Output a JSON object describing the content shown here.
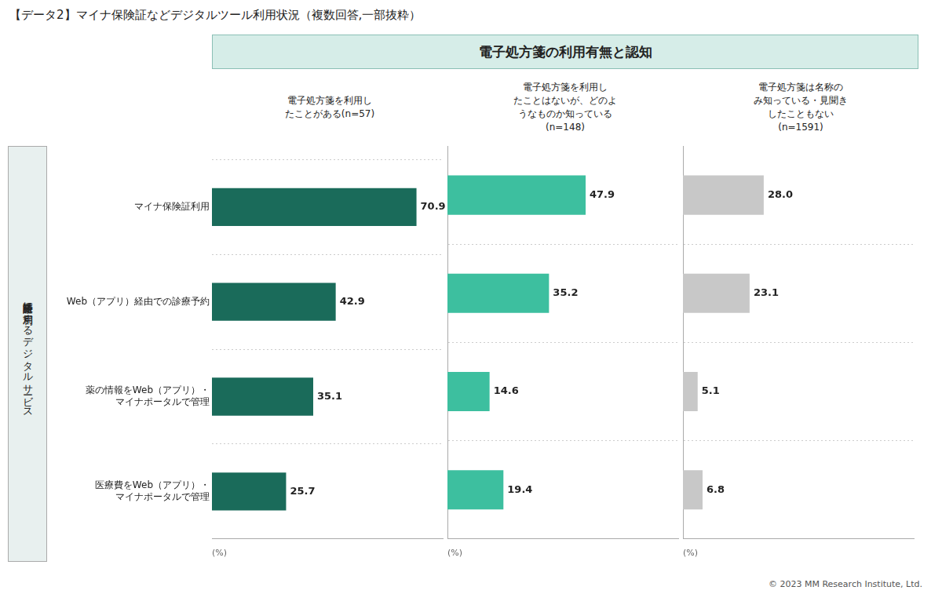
{
  "chart_data": {
    "type": "bar",
    "orientation": "horizontal",
    "title": "【データ2】マイナ保険証などデジタルツール利用状況（複数回答,一部抜粋）",
    "subtitle": "電子処方箋の利用有無と認知",
    "ylabel": "医療受診時に利用するデジタルサービス",
    "xlabel": "(%)",
    "annotations": [
      "© 2023 MM Research Institute, Ltd."
    ],
    "categories": [
      "マイナ保険証利用",
      "Web（アプリ）経由での診療予約",
      "薬の情報をWeb（アプリ）・\nマイナポータルで管理",
      "医療費をWeb（アプリ）・\nマイナポータルで管理"
    ],
    "series": [
      {
        "name": "電子処方箋を利用し\nたことがある(n=57)",
        "color": "#1a6b5a",
        "values": [
          70.9,
          42.9,
          35.1,
          25.7
        ],
        "value_labels": [
          "70.9",
          "42.9",
          "35.1",
          "25.7"
        ]
      },
      {
        "name": "電子処方箋を利用し\nたことはないが、どのよ\nうなものか知っている\n(n=148)",
        "color": "#3dbf9f",
        "values": [
          47.9,
          35.2,
          14.6,
          19.4
        ],
        "value_labels": [
          "47.9",
          "35.2",
          "14.6",
          "19.4"
        ]
      },
      {
        "name": "電子処方箋は名称の\nみ知っている・見聞き\nしたこともない\n(n=1591)",
        "color": "#c8c8c8",
        "values": [
          28.0,
          23.1,
          5.1,
          6.8
        ],
        "value_labels": [
          "28.0",
          "23.1",
          "5.1",
          "6.8"
        ]
      }
    ],
    "xlim": [
      0,
      80
    ],
    "tick_labels": "y",
    "grid": true,
    "data_labels": true
  }
}
